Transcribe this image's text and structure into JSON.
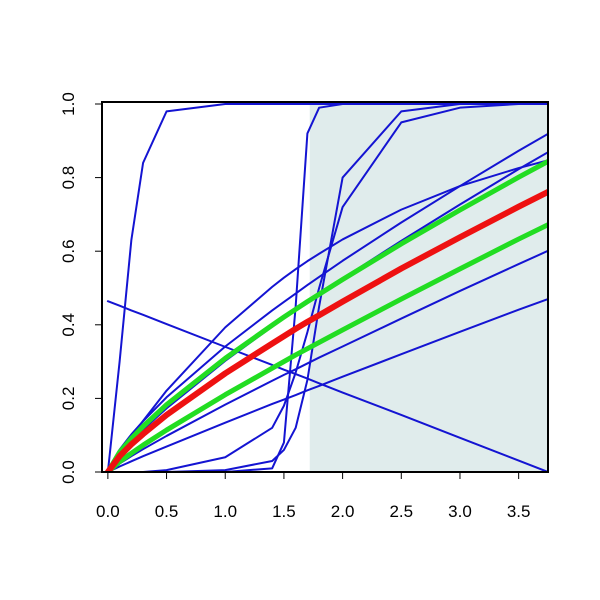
{
  "chart_data": {
    "type": "line",
    "x": [
      0,
      0.1,
      0.2,
      0.3,
      0.5,
      1,
      1.4,
      1.5,
      1.6,
      1.7,
      1.8,
      2,
      2.5,
      3,
      3.5,
      3.75
    ],
    "xlim": [
      -0.05,
      3.75
    ],
    "ylim": [
      0,
      1
    ],
    "xticks": [
      {
        "value": 0,
        "label": "0.0"
      },
      0.5,
      {
        "value": 1,
        "label": "1.0"
      },
      1.5,
      {
        "value": 2,
        "label": "2.0"
      },
      2.5,
      {
        "value": 3,
        "label": "3.0"
      },
      3.5
    ],
    "yticks": [
      {
        "value": 0,
        "label": "0.0"
      },
      0.2,
      0.4,
      0.6,
      0.8,
      {
        "value": 1,
        "label": "1.0"
      }
    ],
    "shaded_region": {
      "x": [
        1.72,
        3.75
      ],
      "color": "#e0ecec"
    },
    "series": [
      {
        "color": "#1414d2",
        "width": 2,
        "values": [
          0,
          0.3,
          0.63,
          0.84,
          0.98,
          1,
          1,
          1,
          1,
          1,
          1,
          1,
          1,
          1,
          1,
          1
        ]
      },
      {
        "color": "#1414d2",
        "width": 2,
        "values": [
          0.464,
          0.452,
          0.439,
          0.427,
          0.402,
          0.34,
          0.291,
          0.278,
          0.266,
          0.254,
          0.241,
          0.216,
          0.155,
          0.093,
          0.031,
          0
        ]
      },
      {
        "color": "#1414d2",
        "width": 2,
        "values": [
          0,
          0,
          0,
          0,
          0,
          0,
          0.01,
          0.08,
          0.45,
          0.92,
          0.99,
          1,
          1,
          1,
          1,
          1
        ]
      },
      {
        "color": "#1414d2",
        "width": 2,
        "values": [
          0,
          0,
          0,
          0,
          0,
          0.005,
          0.03,
          0.06,
          0.12,
          0.25,
          0.45,
          0.8,
          0.98,
          1,
          1,
          1
        ]
      },
      {
        "color": "#1414d2",
        "width": 2,
        "values": [
          0,
          0,
          0,
          0,
          0.005,
          0.04,
          0.12,
          0.18,
          0.27,
          0.38,
          0.5,
          0.72,
          0.95,
          0.99,
          1,
          1
        ]
      },
      {
        "color": "#1414d2",
        "width": 2,
        "values": [
          0,
          0.061,
          0.102,
          0.138,
          0.203,
          0.341,
          0.439,
          0.462,
          0.485,
          0.508,
          0.53,
          0.574,
          0.678,
          0.777,
          0.873,
          0.919
        ]
      },
      {
        "color": "#1414d2",
        "width": 2,
        "values": [
          0,
          0.048,
          0.083,
          0.115,
          0.173,
          0.302,
          0.395,
          0.418,
          0.44,
          0.462,
          0.483,
          0.526,
          0.628,
          0.727,
          0.823,
          0.869
        ]
      },
      {
        "color": "#1414d2",
        "width": 2,
        "values": [
          0,
          0.049,
          0.095,
          0.139,
          0.221,
          0.393,
          0.503,
          0.528,
          0.551,
          0.573,
          0.593,
          0.632,
          0.713,
          0.777,
          0.826,
          0.847
        ]
      },
      {
        "color": "#1414d2",
        "width": 2,
        "values": [
          0,
          0.023,
          0.043,
          0.062,
          0.098,
          0.183,
          0.248,
          0.264,
          0.279,
          0.295,
          0.311,
          0.341,
          0.417,
          0.492,
          0.565,
          0.601
        ]
      },
      {
        "color": "#1414d2",
        "width": 2,
        "values": [
          0,
          0.015,
          0.029,
          0.043,
          0.069,
          0.134,
          0.185,
          0.197,
          0.209,
          0.222,
          0.234,
          0.259,
          0.32,
          0.381,
          0.441,
          0.47
        ]
      },
      {
        "color": "#22dd22",
        "width": 5,
        "values": [
          0,
          0.054,
          0.091,
          0.124,
          0.183,
          0.309,
          0.399,
          0.421,
          0.442,
          0.463,
          0.483,
          0.523,
          0.62,
          0.712,
          0.801,
          0.844
        ]
      },
      {
        "color": "#22dd22",
        "width": 5,
        "values": [
          0,
          0.028,
          0.051,
          0.073,
          0.114,
          0.21,
          0.282,
          0.3,
          0.318,
          0.335,
          0.352,
          0.386,
          0.47,
          0.552,
          0.633,
          0.672
        ]
      },
      {
        "color": "#ee1111",
        "width": 6,
        "values": [
          0,
          0.043,
          0.075,
          0.103,
          0.155,
          0.268,
          0.349,
          0.369,
          0.389,
          0.408,
          0.426,
          0.463,
          0.553,
          0.638,
          0.721,
          0.761
        ]
      }
    ]
  }
}
